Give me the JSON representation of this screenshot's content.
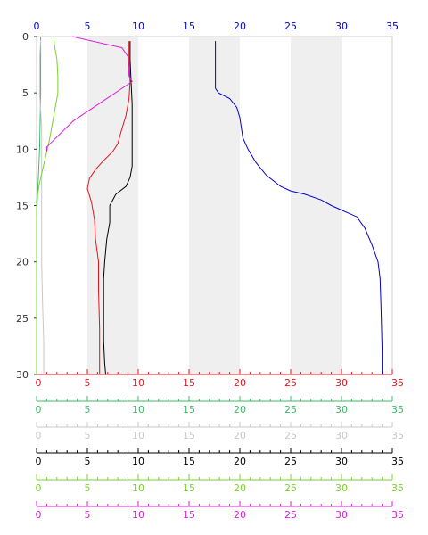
{
  "chart_data": {
    "type": "line",
    "title": "",
    "xlim": [
      0,
      35
    ],
    "ylim": [
      30,
      0
    ],
    "x_ticks": [
      0,
      5,
      10,
      15,
      20,
      25,
      30,
      35
    ],
    "x_tick_labels": [
      "0",
      "5",
      "10",
      "15",
      "20",
      "25",
      "30",
      "35"
    ],
    "y_ticks": [
      0,
      5,
      10,
      15,
      20,
      25,
      30
    ],
    "y_tick_labels": [
      "0",
      "5",
      "10",
      "15",
      "20",
      "25",
      "30"
    ],
    "shaded_x_bands": [
      [
        5,
        10
      ],
      [
        15,
        20
      ],
      [
        25,
        30
      ]
    ],
    "axes": [
      {
        "id": "top",
        "color": "#0000cc"
      },
      {
        "id": "red",
        "color": "#e0151e"
      },
      {
        "id": "green",
        "color": "#3cb96a"
      },
      {
        "id": "gray",
        "color": "#c8c8c8"
      },
      {
        "id": "black",
        "color": "#000000"
      },
      {
        "id": "lime",
        "color": "#7ad32a"
      },
      {
        "id": "magenta",
        "color": "#d81fd8"
      }
    ],
    "series": [
      {
        "color": "#0000cc",
        "axis": "top",
        "x": [
          17.6,
          17.6,
          17.6,
          17.6,
          17.9,
          19.0,
          19.7,
          20.0,
          20.3,
          20.8,
          21.6,
          22.6,
          24.0,
          25.0,
          26.4,
          28.0,
          29.0,
          31.5,
          32.3,
          33.0,
          33.6,
          33.8,
          33.9,
          34.0,
          34.0
        ],
        "y": [
          0.4,
          1.5,
          3.0,
          4.6,
          5.0,
          5.5,
          6.3,
          7.2,
          9.0,
          10.0,
          11.2,
          12.3,
          13.3,
          13.7,
          14.0,
          14.5,
          15.0,
          16.0,
          17.0,
          18.5,
          20.0,
          21.5,
          24.5,
          28.0,
          30.0
        ]
      },
      {
        "color": "#e0151e",
        "axis": "red",
        "x": [
          9.1,
          9.1,
          9.2,
          9.1,
          8.8,
          8.3,
          8.0,
          7.5,
          6.5,
          5.8,
          5.2,
          5.0,
          5.4,
          5.7,
          5.8,
          6.1,
          6.1,
          6.2,
          6.2
        ],
        "y": [
          0.4,
          2.0,
          4.0,
          5.5,
          7.0,
          8.5,
          9.5,
          10.2,
          11.1,
          11.8,
          12.6,
          13.5,
          14.7,
          16.3,
          18.0,
          20.0,
          22.5,
          26.0,
          30.0
        ]
      },
      {
        "color": "#3cb96a",
        "axis": "green",
        "x": [
          0.4,
          0.4,
          0.3,
          0.2,
          0.1,
          0.0,
          0.0,
          0.0,
          0.0
        ],
        "y": [
          0.0,
          5.0,
          10.0,
          12.0,
          14.0,
          16.0,
          20.0,
          25.0,
          30.0
        ]
      },
      {
        "color": "#c8c8c8",
        "axis": "gray",
        "x": [
          0.4,
          0.3,
          0.3,
          0.5,
          0.5,
          0.5,
          0.5,
          0.6,
          0.7,
          0.7
        ],
        "y": [
          0.3,
          2.0,
          5.0,
          8.0,
          12.0,
          16.0,
          20.0,
          24.0,
          27.0,
          30.0
        ]
      },
      {
        "color": "#000000",
        "axis": "black",
        "x": [
          9.2,
          9.2,
          9.3,
          9.4,
          9.4,
          9.4,
          9.2,
          8.8,
          7.8,
          7.2,
          7.2,
          6.9,
          6.7,
          6.6,
          6.6,
          6.6,
          6.7,
          6.8
        ],
        "y": [
          0.4,
          2.0,
          4.0,
          6.0,
          9.0,
          11.5,
          12.5,
          13.3,
          14.0,
          15.0,
          16.5,
          18.0,
          20.0,
          21.5,
          25.0,
          27.0,
          29.0,
          30.0
        ]
      },
      {
        "color": "#7ad32a",
        "axis": "lime",
        "x": [
          1.7,
          1.8,
          2.0,
          2.1,
          2.1,
          1.8,
          1.5,
          1.2,
          0.8,
          0.3,
          0.0,
          0.0
        ],
        "y": [
          0.3,
          1.0,
          2.0,
          3.5,
          5.0,
          6.5,
          8.0,
          9.5,
          11.0,
          13.0,
          14.5,
          30.0
        ]
      },
      {
        "color": "#d81fd8",
        "axis": "magenta",
        "x": [
          3.5,
          8.4,
          9.0,
          9.1,
          9.4,
          3.6,
          1.0,
          1.0
        ],
        "y": [
          0.0,
          1.0,
          1.8,
          3.5,
          4.0,
          7.5,
          9.8,
          10.2
        ]
      }
    ]
  }
}
